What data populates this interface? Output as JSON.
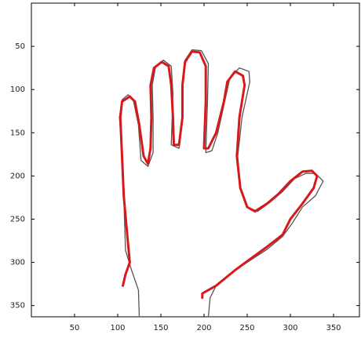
{
  "chart_data": {
    "type": "line",
    "xlim": [
      0,
      380
    ],
    "ylim": [
      0,
      363
    ],
    "y_inverted": true,
    "xticks": [
      50,
      100,
      150,
      200,
      250,
      300,
      350
    ],
    "yticks": [
      50,
      100,
      150,
      200,
      250,
      300,
      350
    ],
    "grid": false,
    "series": [
      {
        "color": "#555555",
        "width": 1.3,
        "x": [
          125,
          124,
          116,
          109,
          107,
          105,
          102,
          105,
          112,
          118,
          124,
          127,
          135,
          141,
          141,
          140,
          144,
          153,
          162,
          164,
          162,
          171,
          175,
          175,
          178,
          186,
          197,
          205,
          204,
          202,
          209,
          216,
          225,
          230,
          241,
          252,
          253,
          244,
          239,
          242,
          250,
          262,
          277,
          291,
          305,
          318,
          329,
          338,
          329,
          314,
          302,
          291,
          273,
          253,
          232,
          214,
          207,
          205
        ],
        "values": [
          363,
          332,
          309,
          286,
          223,
          177,
          132,
          112,
          106,
          112,
          141,
          182,
          189,
          173,
          132,
          95,
          73,
          66,
          73,
          105,
          164,
          168,
          132,
          95,
          66,
          54,
          55,
          70,
          114,
          173,
          171,
          150,
          109,
          86,
          75,
          79,
          91,
          132,
          177,
          214,
          236,
          241,
          230,
          218,
          203,
          197,
          197,
          206,
          223,
          236,
          255,
          270,
          285,
          298,
          312,
          327,
          341,
          363
        ]
      },
      {
        "color": "#d7191c",
        "width": 3,
        "x": [
          106,
          109,
          114,
          111,
          107,
          105,
          103,
          105,
          114,
          120,
          125,
          130,
          135,
          138,
          139,
          138,
          142,
          151,
          159,
          162,
          164,
          165,
          171,
          175,
          175,
          178,
          186,
          195,
          202,
          202,
          200,
          205,
          214,
          223,
          227,
          236,
          245,
          247,
          241,
          238,
          242,
          250,
          259,
          273,
          286,
          300,
          314,
          325,
          331,
          327,
          314,
          300,
          291,
          273,
          255,
          236,
          214,
          198,
          198
        ],
        "values": [
          327,
          314,
          300,
          268,
          223,
          177,
          132,
          114,
          108,
          114,
          141,
          177,
          186,
          168,
          132,
          95,
          75,
          68,
          73,
          95,
          132,
          164,
          164,
          132,
          95,
          68,
          56,
          57,
          73,
          114,
          168,
          168,
          150,
          114,
          91,
          79,
          84,
          95,
          132,
          177,
          214,
          236,
          241,
          232,
          221,
          206,
          195,
          194,
          200,
          214,
          232,
          250,
          268,
          282,
          295,
          309,
          327,
          336,
          341
        ]
      }
    ]
  }
}
